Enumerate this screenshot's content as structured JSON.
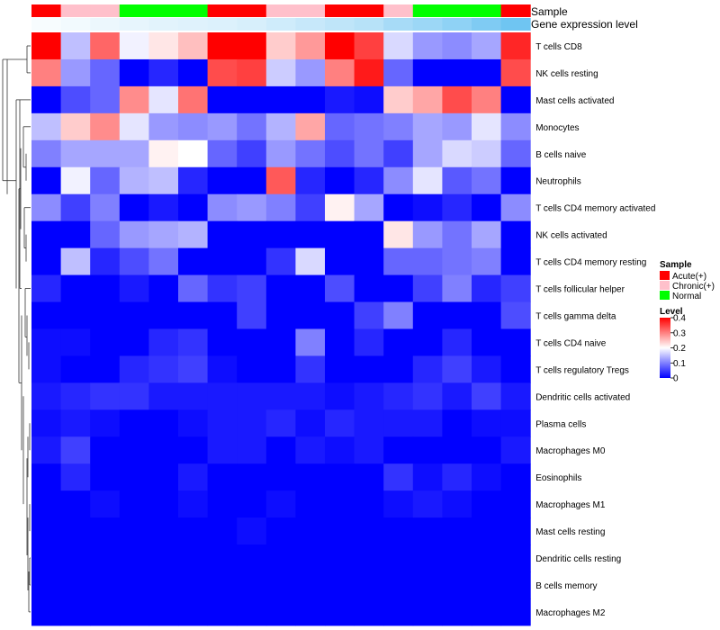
{
  "chart_data": {
    "type": "heatmap",
    "title": "",
    "annotation_row_labels": [
      "Sample",
      "Gene expression level"
    ],
    "sample_groups": [
      "Acute(+)",
      "Chronic(+)",
      "Chronic(+)",
      "Normal",
      "Normal",
      "Normal",
      "Acute(+)",
      "Acute(+)",
      "Chronic(+)",
      "Chronic(+)",
      "Acute(+)",
      "Acute(+)",
      "Chronic(+)",
      "Normal",
      "Normal",
      "Normal",
      "Acute(+)"
    ],
    "gene_expression_level": [
      0.05,
      0.08,
      0.12,
      0.15,
      0.18,
      0.2,
      0.22,
      0.25,
      0.3,
      0.35,
      0.4,
      0.45,
      0.55,
      0.62,
      0.7,
      0.8,
      0.9
    ],
    "rows": [
      "T cells CD8",
      "NK cells resting",
      "Mast cells activated",
      "Monocytes",
      "B cells naive",
      "Neutrophils",
      "T cells CD4 memory activated",
      "NK cells activated",
      "T cells CD4 memory resting",
      "T cells follicular helper",
      "T cells gamma delta",
      "T cells CD4 naive",
      "T cells regulatory  Tregs",
      "Dendritic cells activated",
      "Plasma cells",
      "Macrophages M0",
      "Eosinophils",
      "Macrophages M1",
      "Mast cells resting",
      "Dendritic cells resting",
      "B cells memory",
      "Macrophages M2"
    ],
    "values": [
      [
        0.4,
        0.15,
        0.32,
        0.19,
        0.22,
        0.25,
        0.4,
        0.4,
        0.24,
        0.28,
        0.4,
        0.35,
        0.17,
        0.12,
        0.11,
        0.13,
        0.37
      ],
      [
        0.3,
        0.12,
        0.08,
        0.0,
        0.03,
        0.0,
        0.34,
        0.35,
        0.16,
        0.12,
        0.3,
        0.38,
        0.08,
        0.0,
        0.0,
        0.0,
        0.34
      ],
      [
        0.0,
        0.06,
        0.08,
        0.29,
        0.18,
        0.31,
        0.0,
        0.0,
        0.0,
        0.0,
        0.02,
        0.01,
        0.24,
        0.27,
        0.34,
        0.3,
        0.0
      ],
      [
        0.15,
        0.24,
        0.29,
        0.18,
        0.12,
        0.11,
        0.12,
        0.09,
        0.14,
        0.27,
        0.08,
        0.09,
        0.1,
        0.13,
        0.12,
        0.18,
        0.11
      ],
      [
        0.1,
        0.13,
        0.13,
        0.13,
        0.21,
        0.2,
        0.08,
        0.05,
        0.12,
        0.09,
        0.06,
        0.09,
        0.05,
        0.13,
        0.17,
        0.16,
        0.08
      ],
      [
        0.0,
        0.19,
        0.08,
        0.14,
        0.15,
        0.03,
        0.0,
        0.0,
        0.33,
        0.03,
        0.0,
        0.03,
        0.11,
        0.18,
        0.07,
        0.09,
        0.0
      ],
      [
        0.11,
        0.05,
        0.1,
        0.0,
        0.02,
        0.0,
        0.11,
        0.12,
        0.1,
        0.05,
        0.21,
        0.13,
        0.0,
        0.01,
        0.03,
        0.0,
        0.11
      ],
      [
        0.0,
        0.0,
        0.08,
        0.12,
        0.13,
        0.14,
        0.0,
        0.0,
        0.0,
        0.0,
        0.0,
        0.0,
        0.22,
        0.12,
        0.09,
        0.13,
        0.0
      ],
      [
        0.0,
        0.15,
        0.03,
        0.06,
        0.09,
        0.0,
        0.0,
        0.0,
        0.04,
        0.17,
        0.0,
        0.0,
        0.08,
        0.08,
        0.09,
        0.1,
        0.0
      ],
      [
        0.03,
        0.0,
        0.0,
        0.02,
        0.0,
        0.08,
        0.04,
        0.05,
        0.0,
        0.0,
        0.06,
        0.0,
        0.0,
        0.05,
        0.1,
        0.03,
        0.05
      ],
      [
        0.0,
        0.0,
        0.0,
        0.0,
        0.0,
        0.0,
        0.0,
        0.05,
        0.0,
        0.0,
        0.0,
        0.05,
        0.1,
        0.0,
        0.0,
        0.0,
        0.06
      ],
      [
        0.01,
        0.01,
        0.0,
        0.0,
        0.03,
        0.04,
        0.0,
        0.0,
        0.0,
        0.1,
        0.0,
        0.03,
        0.0,
        0.0,
        0.03,
        0.0,
        0.0
      ],
      [
        0.01,
        0.0,
        0.0,
        0.03,
        0.04,
        0.05,
        0.01,
        0.0,
        0.0,
        0.04,
        0.0,
        0.0,
        0.0,
        0.03,
        0.05,
        0.02,
        0.0
      ],
      [
        0.02,
        0.03,
        0.04,
        0.04,
        0.02,
        0.02,
        0.02,
        0.02,
        0.02,
        0.02,
        0.01,
        0.02,
        0.03,
        0.04,
        0.02,
        0.05,
        0.02
      ],
      [
        0.01,
        0.02,
        0.01,
        0.0,
        0.0,
        0.01,
        0.02,
        0.02,
        0.03,
        0.01,
        0.03,
        0.02,
        0.02,
        0.02,
        0.0,
        0.01,
        0.01
      ],
      [
        0.02,
        0.05,
        0.0,
        0.0,
        0.0,
        0.0,
        0.02,
        0.02,
        0.0,
        0.02,
        0.01,
        0.02,
        0.0,
        0.0,
        0.0,
        0.0,
        0.02
      ],
      [
        0.0,
        0.03,
        0.0,
        0.0,
        0.0,
        0.02,
        0.0,
        0.0,
        0.0,
        0.0,
        0.0,
        0.0,
        0.04,
        0.01,
        0.03,
        0.01,
        0.0
      ],
      [
        0.0,
        0.0,
        0.01,
        0.0,
        0.0,
        0.01,
        0.0,
        0.0,
        0.01,
        0.0,
        0.0,
        0.0,
        0.01,
        0.02,
        0.01,
        0.0,
        0.0
      ],
      [
        0.0,
        0.0,
        0.0,
        0.0,
        0.0,
        0.0,
        0.0,
        0.01,
        0.0,
        0.0,
        0.0,
        0.0,
        0.0,
        0.0,
        0.0,
        0.0,
        0.0
      ],
      [
        0.0,
        0.0,
        0.0,
        0.0,
        0.0,
        0.0,
        0.0,
        0.0,
        0.0,
        0.0,
        0.0,
        0.0,
        0.0,
        0.0,
        0.0,
        0.0,
        0.0
      ],
      [
        0.0,
        0.0,
        0.0,
        0.0,
        0.0,
        0.0,
        0.0,
        0.0,
        0.0,
        0.0,
        0.0,
        0.0,
        0.0,
        0.0,
        0.0,
        0.0,
        0.0
      ],
      [
        0.0,
        0.0,
        0.0,
        0.0,
        0.0,
        0.0,
        0.0,
        0.0,
        0.0,
        0.0,
        0.0,
        0.0,
        0.0,
        0.0,
        0.0,
        0.0,
        0.0
      ]
    ],
    "color_scale": {
      "min": 0,
      "mid": 0.2,
      "max": 0.4,
      "low": "#0000ff",
      "midcolor": "#ffffff",
      "high": "#ff0000"
    },
    "legend": {
      "sample_title": "Sample",
      "sample_entries": [
        {
          "label": "Acute(+)",
          "color": "#ff0000"
        },
        {
          "label": "Chronic(+)",
          "color": "#ffc0cb"
        },
        {
          "label": "Normal",
          "color": "#00ff00"
        }
      ],
      "level_title": "Level",
      "level_ticks": [
        "0.4",
        "0.3",
        "0.2",
        "0.1",
        "0"
      ],
      "placement": "right"
    }
  }
}
